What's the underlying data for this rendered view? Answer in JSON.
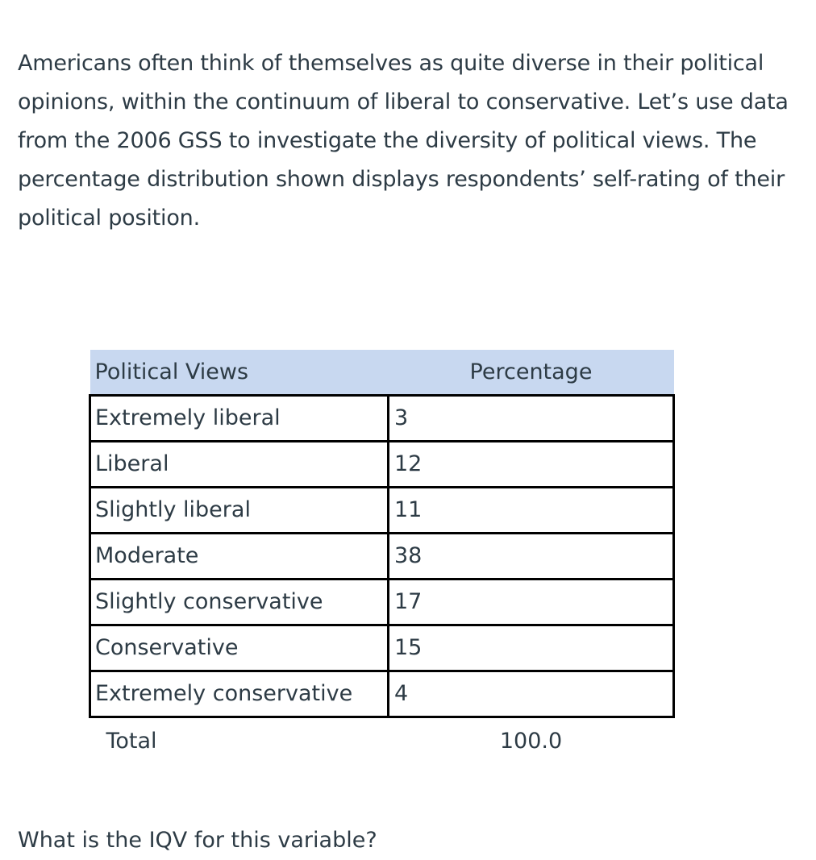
{
  "intro_text": "Americans often think of themselves as quite diverse in their political opinions, within the continuum of liberal to conservative. Let’s use data from the 2006 GSS to investigate the diversity of political views. The percentage distribution shown displays respondents’ self-rating of their political position.",
  "table": {
    "header": {
      "col1": "Political Views",
      "col2": "Percentage"
    },
    "rows": [
      {
        "label": "Extremely liberal",
        "value": "3"
      },
      {
        "label": "Liberal",
        "value": "12"
      },
      {
        "label": "Slightly liberal",
        "value": "11"
      },
      {
        "label": "Moderate",
        "value": "38"
      },
      {
        "label": "Slightly conservative",
        "value": "17"
      },
      {
        "label": "Conservative",
        "value": "15"
      },
      {
        "label": "Extremely conservative",
        "value": "4"
      }
    ],
    "total": {
      "label": "Total",
      "value": "100.0"
    }
  },
  "question": "What is the IQV for this variable?",
  "colors": {
    "header_bg": "#c8d8f0",
    "text": "#2d3b45",
    "border": "#000000"
  }
}
